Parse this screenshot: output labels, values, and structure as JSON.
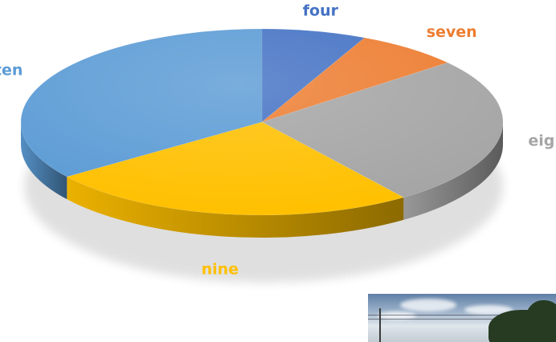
{
  "chart_data": {
    "type": "pie",
    "style": "3d",
    "title": "",
    "categories": [
      "four",
      "seven",
      "eight",
      "nine",
      "ten"
    ],
    "values": [
      7,
      7,
      26,
      25,
      35
    ],
    "colors": [
      "#4472C4",
      "#ED7D31",
      "#A5A5A5",
      "#FFC000",
      "#5B9BD5"
    ],
    "start_angle": "top, clockwise",
    "legend": "none; category labels placed outside each slice, in slice color"
  },
  "photo": {
    "icon": "landscape-photo"
  }
}
